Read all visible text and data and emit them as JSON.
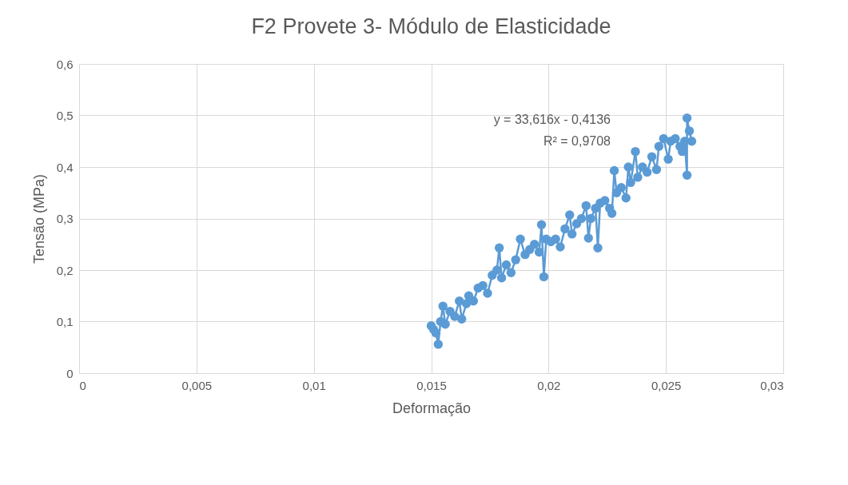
{
  "chart_data": {
    "type": "line",
    "title": "F2 Provete 3- Módulo de Elasticidade",
    "xlabel": "Deformação",
    "ylabel": "Tensão (MPa)",
    "x": [
      0.015,
      0.0151,
      0.0152,
      0.0153,
      0.0154,
      0.0155,
      0.0156,
      0.0158,
      0.016,
      0.0162,
      0.0163,
      0.0165,
      0.0166,
      0.0168,
      0.017,
      0.0172,
      0.0174,
      0.0176,
      0.0178,
      0.0179,
      0.018,
      0.0182,
      0.0184,
      0.0186,
      0.0188,
      0.019,
      0.0192,
      0.0194,
      0.0196,
      0.0197,
      0.0198,
      0.0199,
      0.0201,
      0.0203,
      0.0205,
      0.0207,
      0.0209,
      0.021,
      0.0212,
      0.0214,
      0.0216,
      0.0217,
      0.0218,
      0.022,
      0.0221,
      0.0222,
      0.0224,
      0.0226,
      0.0227,
      0.0228,
      0.0229,
      0.0231,
      0.0233,
      0.0234,
      0.0235,
      0.0237,
      0.0238,
      0.024,
      0.0242,
      0.0244,
      0.0246,
      0.0247,
      0.0249,
      0.0251,
      0.0252,
      0.0254,
      0.0256,
      0.0257,
      0.0258,
      0.0259,
      0.0259,
      0.026,
      0.0261
    ],
    "series": [
      {
        "color": "#5b9bd5",
        "values": [
          0.092,
          0.085,
          0.078,
          0.056,
          0.1,
          0.13,
          0.095,
          0.12,
          0.11,
          0.14,
          0.105,
          0.135,
          0.15,
          0.14,
          0.165,
          0.17,
          0.155,
          0.19,
          0.2,
          0.243,
          0.185,
          0.21,
          0.195,
          0.22,
          0.26,
          0.23,
          0.24,
          0.25,
          0.235,
          0.288,
          0.187,
          0.26,
          0.255,
          0.26,
          0.245,
          0.28,
          0.307,
          0.27,
          0.29,
          0.3,
          0.325,
          0.262,
          0.3,
          0.32,
          0.243,
          0.33,
          0.335,
          0.32,
          0.31,
          0.393,
          0.35,
          0.36,
          0.34,
          0.4,
          0.37,
          0.43,
          0.38,
          0.4,
          0.39,
          0.42,
          0.395,
          0.44,
          0.455,
          0.415,
          0.45,
          0.455,
          0.44,
          0.43,
          0.45,
          0.384,
          0.495,
          0.47,
          0.45
        ]
      }
    ],
    "xlim": [
      0,
      0.03
    ],
    "ylim": [
      0,
      0.6
    ],
    "xticks": [
      0,
      {
        "value": 0.005,
        "label": "0,005"
      },
      {
        "value": 0.01,
        "label": "0,01"
      },
      {
        "value": 0.015,
        "label": "0,015"
      },
      {
        "value": 0.02,
        "label": "0,02"
      },
      {
        "value": 0.025,
        "label": "0,025"
      },
      {
        "value": 0.03,
        "label": "0,03"
      }
    ],
    "yticks": [
      0,
      {
        "value": 0.1,
        "label": "0,1"
      },
      {
        "value": 0.2,
        "label": "0,2"
      },
      {
        "value": 0.3,
        "label": "0,3"
      },
      {
        "value": 0.4,
        "label": "0,4"
      },
      {
        "value": 0.5,
        "label": "0,5"
      },
      {
        "value": 0.6,
        "label": "0,6"
      }
    ],
    "grid": true,
    "marker": "circle",
    "line_style": "solid",
    "annotations": [
      "y = 33,616x - 0,4136",
      "R² = 0,9708"
    ]
  }
}
